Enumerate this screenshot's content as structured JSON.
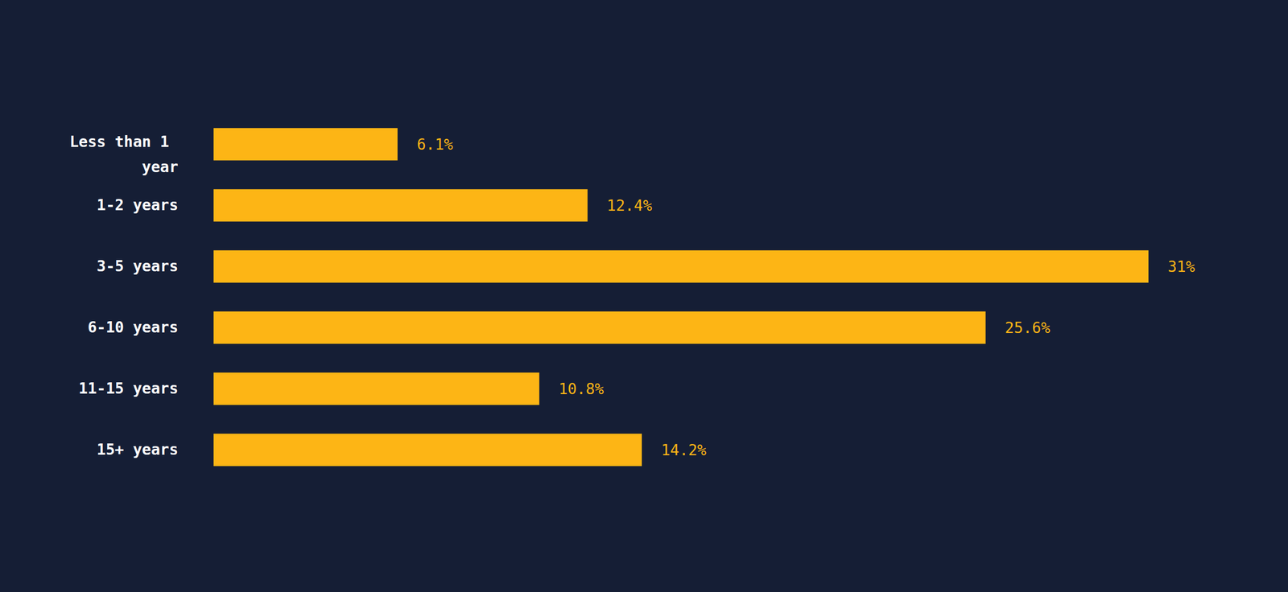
{
  "chart_data": {
    "type": "bar",
    "orientation": "horizontal",
    "categories": [
      "Less than 1 year",
      "1-2 years",
      "3-5 years",
      "6-10 years",
      "11-15 years",
      "15+ years"
    ],
    "values": [
      6.1,
      12.4,
      31,
      25.6,
      10.8,
      14.2
    ],
    "value_labels": [
      "6.1%",
      "12.4%",
      "31%",
      "25.6%",
      "10.8%",
      "14.2%"
    ],
    "color": "#fdb515",
    "xlim": [
      0,
      31
    ],
    "data_labels": true,
    "tick_labels": "y",
    "grid": false
  }
}
